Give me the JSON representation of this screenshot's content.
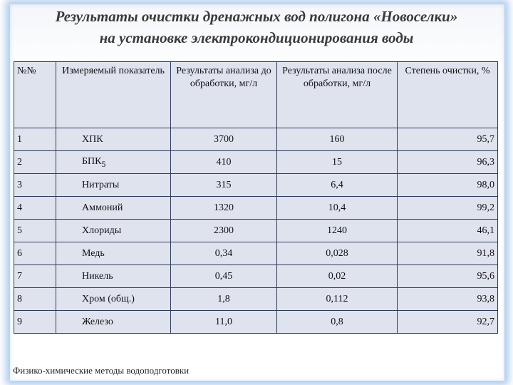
{
  "title": {
    "line1": "Результаты очистки дренажных вод полигона «Новоселки»",
    "line2": "на установке электрокондиционирования воды"
  },
  "table": {
    "headers": [
      "№№",
      "Измеряемый показатель",
      "Результаты анализа до обработки, мг/л",
      "Результаты анализа после обработки, мг/л",
      "Степень очистки, %"
    ],
    "rows": [
      {
        "n": "1",
        "indicator": "ХПК",
        "before": "3700",
        "after": "160",
        "degree": "95,7"
      },
      {
        "n": "2",
        "indicator": "БПК5",
        "before": "410",
        "after": "15",
        "degree": "96,3"
      },
      {
        "n": "3",
        "indicator": "Нитраты",
        "before": "315",
        "after": "6,4",
        "degree": "98,0"
      },
      {
        "n": "4",
        "indicator": "Аммоний",
        "before": "1320",
        "after": "10,4",
        "degree": "99,2"
      },
      {
        "n": "5",
        "indicator": "Хлориды",
        "before": "2300",
        "after": "1240",
        "degree": "46,1"
      },
      {
        "n": "6",
        "indicator": "Медь",
        "before": "0,34",
        "after": "0,028",
        "degree": "91,8"
      },
      {
        "n": "7",
        "indicator": "Никель",
        "before": "0,45",
        "after": "0,02",
        "degree": "95,6"
      },
      {
        "n": "8",
        "indicator": "Хром (общ.)",
        "before": "1,8",
        "after": "0,112",
        "degree": "93,8"
      },
      {
        "n": "9",
        "indicator": "Железо",
        "before": "11,0",
        "after": "0,8",
        "degree": "92,7"
      }
    ]
  },
  "footer": "Физико-химические методы водоподготовки",
  "colors": {
    "table_bg": "#dfe3ee",
    "border": "#2d3a5a",
    "frame_glow": "#468cdc",
    "title_text": "#3a3a3a"
  }
}
